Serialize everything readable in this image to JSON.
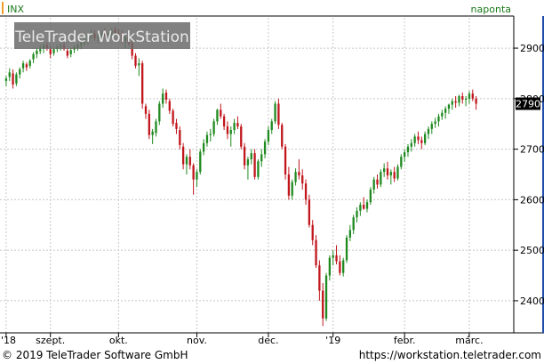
{
  "colors": {
    "up": "#1f8a1f",
    "down": "#c0161c",
    "grid": "#c8c8c8",
    "symbol_accent": "#f0a030",
    "interval_text": "#1a7a1a"
  },
  "header": {
    "symbol": "INX",
    "interval": "naponta",
    "watermark": "TeleTrader WorkStation"
  },
  "last_price_label": "2790",
  "footer": {
    "copyright": "© 2019 TeleTrader Software GmbH",
    "website": "https://workstation.teletrader.com"
  },
  "chart_data": {
    "type": "candlestick",
    "title": "",
    "xlabel": "",
    "ylabel": "",
    "ylim": [
      2340,
      2960
    ],
    "y_ticks": [
      2400,
      2500,
      2600,
      2700,
      2800,
      2900
    ],
    "y_tick_labels": [
      "2400",
      "2500",
      "2600",
      "2700",
      "2800",
      "2900"
    ],
    "x_ticks": [
      {
        "label": "'18",
        "index": 0
      },
      {
        "label": "szept.",
        "index": 13
      },
      {
        "label": "okt.",
        "index": 33
      },
      {
        "label": "nov.",
        "index": 56
      },
      {
        "label": "dec.",
        "index": 77
      },
      {
        "label": "'19",
        "index": 96
      },
      {
        "label": "febr.",
        "index": 117
      },
      {
        "label": "márc.",
        "index": 136
      }
    ],
    "x_axis_last_index": 147,
    "grid": true,
    "last_value": 2790,
    "series": [
      {
        "values": [
          [
            2835,
            2845,
            2825,
            2840
          ],
          [
            2843,
            2860,
            2835,
            2852
          ],
          [
            2850,
            2858,
            2820,
            2828
          ],
          [
            2830,
            2852,
            2825,
            2848
          ],
          [
            2848,
            2862,
            2840,
            2858
          ],
          [
            2860,
            2875,
            2852,
            2870
          ],
          [
            2868,
            2872,
            2855,
            2862
          ],
          [
            2865,
            2878,
            2860,
            2875
          ],
          [
            2878,
            2892,
            2870,
            2888
          ],
          [
            2888,
            2900,
            2880,
            2895
          ],
          [
            2894,
            2905,
            2888,
            2898
          ],
          [
            2900,
            2910,
            2890,
            2905
          ],
          [
            2906,
            2912,
            2895,
            2900
          ],
          [
            2898,
            2905,
            2880,
            2888
          ],
          [
            2890,
            2902,
            2885,
            2898
          ],
          [
            2898,
            2908,
            2892,
            2902
          ],
          [
            2903,
            2910,
            2895,
            2905
          ],
          [
            2905,
            2912,
            2895,
            2898
          ],
          [
            2895,
            2900,
            2880,
            2885
          ],
          [
            2888,
            2900,
            2882,
            2896
          ],
          [
            2897,
            2906,
            2890,
            2902
          ],
          [
            2900,
            2910,
            2895,
            2906
          ],
          [
            2906,
            2915,
            2898,
            2910
          ],
          [
            2911,
            2920,
            2905,
            2914
          ],
          [
            2914,
            2928,
            2908,
            2925
          ],
          [
            2926,
            2936,
            2918,
            2928
          ],
          [
            2928,
            2936,
            2915,
            2920
          ],
          [
            2920,
            2928,
            2910,
            2925
          ],
          [
            2926,
            2935,
            2918,
            2930
          ],
          [
            2930,
            2940,
            2922,
            2925
          ],
          [
            2925,
            2932,
            2915,
            2929
          ],
          [
            2930,
            2940,
            2924,
            2935
          ],
          [
            2936,
            2942,
            2926,
            2930
          ],
          [
            2930,
            2938,
            2920,
            2928
          ],
          [
            2928,
            2935,
            2910,
            2915
          ],
          [
            2915,
            2925,
            2900,
            2922
          ],
          [
            2922,
            2930,
            2905,
            2910
          ],
          [
            2910,
            2915,
            2878,
            2885
          ],
          [
            2885,
            2890,
            2860,
            2865
          ],
          [
            2866,
            2880,
            2845,
            2870
          ],
          [
            2870,
            2875,
            2780,
            2790
          ],
          [
            2785,
            2790,
            2760,
            2770
          ],
          [
            2770,
            2778,
            2720,
            2728
          ],
          [
            2728,
            2740,
            2710,
            2735
          ],
          [
            2732,
            2760,
            2725,
            2755
          ],
          [
            2755,
            2795,
            2748,
            2790
          ],
          [
            2790,
            2820,
            2782,
            2810
          ],
          [
            2812,
            2818,
            2790,
            2798
          ],
          [
            2795,
            2800,
            2770,
            2776
          ],
          [
            2776,
            2780,
            2745,
            2750
          ],
          [
            2752,
            2760,
            2730,
            2740
          ],
          [
            2738,
            2745,
            2700,
            2708
          ],
          [
            2705,
            2712,
            2660,
            2670
          ],
          [
            2670,
            2690,
            2650,
            2685
          ],
          [
            2685,
            2700,
            2660,
            2668
          ],
          [
            2668,
            2672,
            2610,
            2640
          ],
          [
            2640,
            2660,
            2625,
            2655
          ],
          [
            2655,
            2700,
            2650,
            2695
          ],
          [
            2695,
            2720,
            2688,
            2712
          ],
          [
            2712,
            2735,
            2705,
            2728
          ],
          [
            2728,
            2740,
            2715,
            2730
          ],
          [
            2730,
            2760,
            2725,
            2755
          ],
          [
            2755,
            2780,
            2748,
            2778
          ],
          [
            2778,
            2790,
            2760,
            2765
          ],
          [
            2765,
            2770,
            2738,
            2745
          ],
          [
            2745,
            2755,
            2720,
            2730
          ],
          [
            2730,
            2745,
            2705,
            2738
          ],
          [
            2738,
            2760,
            2730,
            2752
          ],
          [
            2752,
            2765,
            2740,
            2745
          ],
          [
            2745,
            2750,
            2700,
            2705
          ],
          [
            2705,
            2712,
            2660,
            2668
          ],
          [
            2668,
            2685,
            2640,
            2680
          ],
          [
            2680,
            2700,
            2670,
            2692
          ],
          [
            2692,
            2700,
            2640,
            2645
          ],
          [
            2645,
            2680,
            2640,
            2676
          ],
          [
            2676,
            2700,
            2665,
            2690
          ],
          [
            2690,
            2720,
            2682,
            2715
          ],
          [
            2715,
            2745,
            2708,
            2738
          ],
          [
            2738,
            2760,
            2730,
            2755
          ],
          [
            2755,
            2795,
            2750,
            2790
          ],
          [
            2790,
            2800,
            2740,
            2748
          ],
          [
            2748,
            2752,
            2700,
            2705
          ],
          [
            2705,
            2710,
            2640,
            2650
          ],
          [
            2650,
            2665,
            2600,
            2608
          ],
          [
            2608,
            2640,
            2600,
            2635
          ],
          [
            2635,
            2662,
            2628,
            2655
          ],
          [
            2655,
            2680,
            2640,
            2648
          ],
          [
            2648,
            2660,
            2620,
            2632
          ],
          [
            2632,
            2640,
            2590,
            2600
          ],
          [
            2600,
            2610,
            2545,
            2550
          ],
          [
            2550,
            2560,
            2510,
            2520
          ],
          [
            2520,
            2530,
            2465,
            2470
          ],
          [
            2470,
            2480,
            2400,
            2420
          ],
          [
            2420,
            2435,
            2350,
            2365
          ],
          [
            2365,
            2455,
            2360,
            2450
          ],
          [
            2450,
            2490,
            2440,
            2485
          ],
          [
            2485,
            2500,
            2470,
            2490
          ],
          [
            2490,
            2510,
            2472,
            2478
          ],
          [
            2478,
            2490,
            2450,
            2455
          ],
          [
            2455,
            2485,
            2448,
            2480
          ],
          [
            2480,
            2530,
            2475,
            2525
          ],
          [
            2525,
            2550,
            2518,
            2540
          ],
          [
            2540,
            2570,
            2532,
            2565
          ],
          [
            2565,
            2585,
            2555,
            2578
          ],
          [
            2578,
            2595,
            2568,
            2590
          ],
          [
            2590,
            2605,
            2580,
            2582
          ],
          [
            2582,
            2600,
            2575,
            2595
          ],
          [
            2595,
            2625,
            2590,
            2620
          ],
          [
            2620,
            2645,
            2612,
            2640
          ],
          [
            2640,
            2650,
            2622,
            2630
          ],
          [
            2630,
            2660,
            2625,
            2655
          ],
          [
            2655,
            2672,
            2645,
            2662
          ],
          [
            2662,
            2675,
            2640,
            2648
          ],
          [
            2648,
            2660,
            2630,
            2655
          ],
          [
            2655,
            2665,
            2635,
            2642
          ],
          [
            2642,
            2670,
            2638,
            2665
          ],
          [
            2665,
            2690,
            2660,
            2685
          ],
          [
            2685,
            2700,
            2675,
            2694
          ],
          [
            2694,
            2710,
            2685,
            2705
          ],
          [
            2705,
            2720,
            2695,
            2712
          ],
          [
            2712,
            2730,
            2705,
            2725
          ],
          [
            2725,
            2735,
            2710,
            2718
          ],
          [
            2718,
            2725,
            2700,
            2712
          ],
          [
            2712,
            2735,
            2708,
            2730
          ],
          [
            2730,
            2745,
            2720,
            2740
          ],
          [
            2740,
            2755,
            2730,
            2750
          ],
          [
            2750,
            2762,
            2742,
            2755
          ],
          [
            2755,
            2770,
            2745,
            2765
          ],
          [
            2765,
            2778,
            2758,
            2772
          ],
          [
            2772,
            2785,
            2760,
            2780
          ],
          [
            2780,
            2790,
            2770,
            2788
          ],
          [
            2788,
            2800,
            2778,
            2795
          ],
          [
            2795,
            2805,
            2782,
            2792
          ],
          [
            2792,
            2808,
            2785,
            2805
          ],
          [
            2805,
            2812,
            2790,
            2798
          ],
          [
            2798,
            2805,
            2785,
            2800
          ],
          [
            2800,
            2815,
            2790,
            2810
          ],
          [
            2810,
            2818,
            2795,
            2800
          ],
          [
            2800,
            2805,
            2778,
            2790
          ]
        ]
      }
    ]
  }
}
